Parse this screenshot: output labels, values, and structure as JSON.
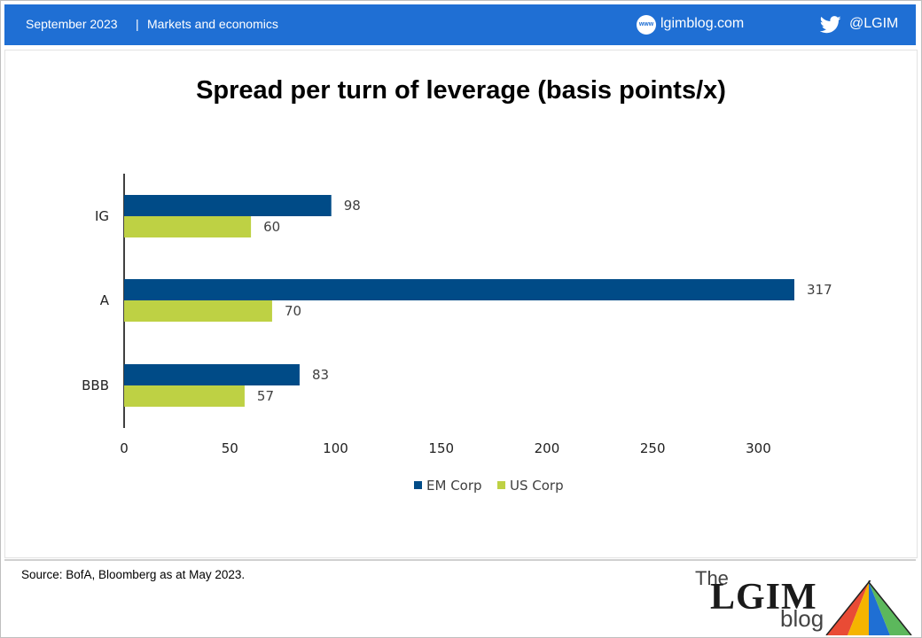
{
  "header": {
    "date": "September 2023",
    "separator": "|",
    "topic": "Markets and economics",
    "site_icon_text": "www",
    "site": "lgimblog.com",
    "twitter_icon": "twitter-bird-icon",
    "handle": "@LGIM",
    "bar_color": "#1f6fd4"
  },
  "chart_data": {
    "type": "bar",
    "orientation": "horizontal",
    "title": "Spread per turn of leverage (basis points/x)",
    "categories": [
      "IG",
      "A",
      "BBB"
    ],
    "series": [
      {
        "name": "EM Corp",
        "values": [
          98,
          317,
          83
        ],
        "color": "#004b87"
      },
      {
        "name": "US Corp",
        "values": [
          60,
          70,
          57
        ],
        "color": "#bed144"
      }
    ],
    "x_ticks": [
      0,
      50,
      100,
      150,
      200,
      250,
      300
    ],
    "xlim": [
      0,
      335
    ],
    "grid": false,
    "legend_position": "bottom"
  },
  "footer": {
    "source": "Source: BofA, Bloomberg as at May 2023.",
    "logo_the": "The",
    "logo_lgim": "LGIM",
    "logo_blog": "blog"
  }
}
